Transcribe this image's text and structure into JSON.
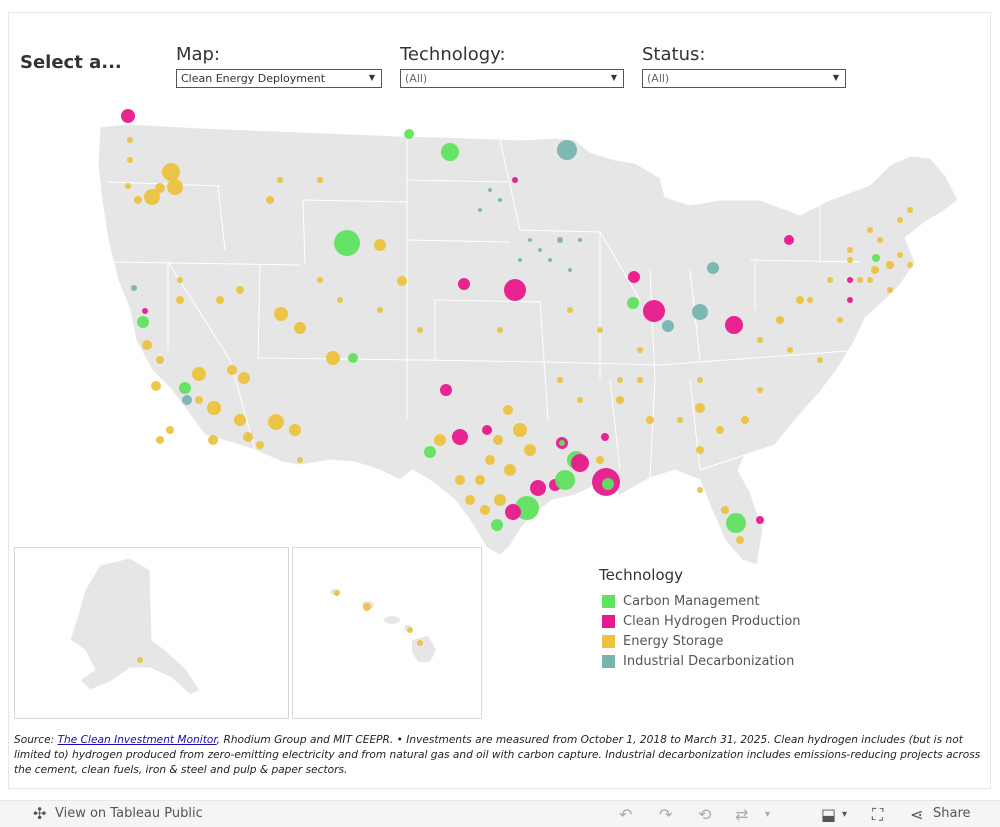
{
  "header": {
    "select_title": "Select a..."
  },
  "filters": [
    {
      "label": "Map:",
      "value": "Clean Energy Deployment"
    },
    {
      "label": "Technology:",
      "value": "(All)"
    },
    {
      "label": "Status:",
      "value": "(All)"
    }
  ],
  "legend": {
    "title": "Technology",
    "items": [
      {
        "label": "Carbon Management",
        "color": "#5fe35f"
      },
      {
        "label": "Clean Hydrogen Production",
        "color": "#e8198b"
      },
      {
        "label": "Energy Storage",
        "color": "#ecc23e"
      },
      {
        "label": "Industrial Decarbonization",
        "color": "#78b4b0"
      }
    ]
  },
  "source": {
    "prefix": "Source: ",
    "link_text": "The Clean Investment Monitor",
    "text": ", Rhodium Group and MIT CEEPR. • Investments are measured from October 1, 2018 to March 31, 2025. Clean hydrogen includes (but is not limited to) hydrogen produced from zero-emitting electricity and from natural gas and oil with carbon capture. Industrial decarbonization includes emissions-reducing projects across the cement, clean fuels, iron & steel and pulp & paper sectors."
  },
  "toolbar": {
    "view_label": "View on Tableau Public",
    "share_label": "Share",
    "icons": [
      "tableau-icon",
      "undo-icon",
      "redo-icon",
      "revert-icon",
      "refresh-icon",
      "download-icon",
      "fullscreen-icon",
      "share-icon"
    ]
  }
}
